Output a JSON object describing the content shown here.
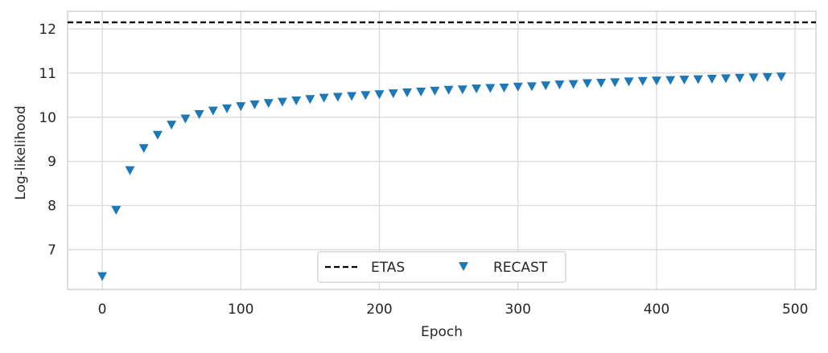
{
  "chart_data": {
    "type": "scatter",
    "xlabel": "Epoch",
    "ylabel": "Log-likelihood",
    "xlim": [
      -25,
      515
    ],
    "ylim": [
      6.1,
      12.4
    ],
    "xticks": [
      0,
      100,
      200,
      300,
      400,
      500
    ],
    "yticks": [
      7,
      8,
      9,
      10,
      11,
      12
    ],
    "grid": true,
    "legend_position": "bottom-center",
    "series": [
      {
        "name": "ETAS",
        "kind": "hline",
        "y": 12.15,
        "color": "#000000",
        "linestyle": "dashed"
      },
      {
        "name": "RECAST",
        "kind": "scatter",
        "marker": "triangle-down",
        "color": "#1f77b4",
        "x": [
          0,
          10,
          20,
          30,
          40,
          50,
          60,
          70,
          80,
          90,
          100,
          110,
          120,
          130,
          140,
          150,
          160,
          170,
          180,
          190,
          200,
          210,
          220,
          230,
          240,
          250,
          260,
          270,
          280,
          290,
          300,
          310,
          320,
          330,
          340,
          350,
          360,
          370,
          380,
          390,
          400,
          410,
          420,
          430,
          440,
          450,
          460,
          470,
          480,
          490
        ],
        "y": [
          6.4,
          7.9,
          8.8,
          9.3,
          9.6,
          9.83,
          9.97,
          10.07,
          10.15,
          10.2,
          10.25,
          10.29,
          10.32,
          10.35,
          10.38,
          10.41,
          10.44,
          10.46,
          10.48,
          10.5,
          10.52,
          10.54,
          10.56,
          10.58,
          10.6,
          10.62,
          10.63,
          10.65,
          10.66,
          10.67,
          10.69,
          10.7,
          10.72,
          10.74,
          10.75,
          10.77,
          10.78,
          10.79,
          10.81,
          10.82,
          10.83,
          10.84,
          10.85,
          10.86,
          10.87,
          10.88,
          10.89,
          10.9,
          10.91,
          10.92
        ]
      }
    ]
  }
}
